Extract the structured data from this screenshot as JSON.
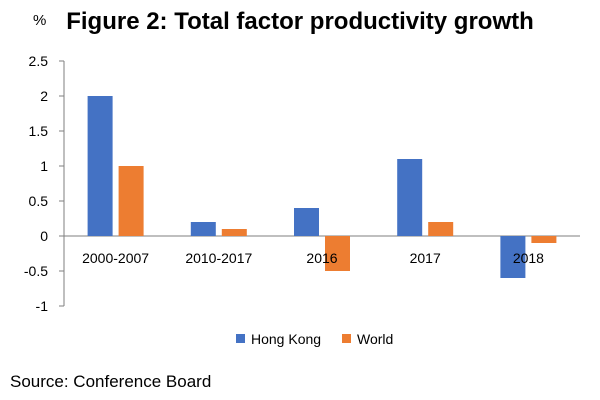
{
  "chart_data": {
    "type": "bar",
    "title": "Figure 2: Total factor productivity growth",
    "unit_label": "%",
    "source": "Source: Conference Board",
    "categories": [
      "2000-2007",
      "2010-2017",
      "2016",
      "2017",
      "2018"
    ],
    "series": [
      {
        "name": "Hong Kong",
        "color": "#4472C4",
        "values": [
          2.0,
          0.2,
          0.4,
          1.1,
          -0.6
        ]
      },
      {
        "name": "World",
        "color": "#ED7D31",
        "values": [
          1.0,
          0.1,
          -0.5,
          0.2,
          -0.1
        ]
      }
    ],
    "ylim": [
      -1,
      2.5
    ],
    "yticks": [
      "2.5",
      "2",
      "1.5",
      "1",
      "0.5",
      "0",
      "-0.5",
      "-1"
    ],
    "legend_position": "bottom",
    "grid": false
  }
}
